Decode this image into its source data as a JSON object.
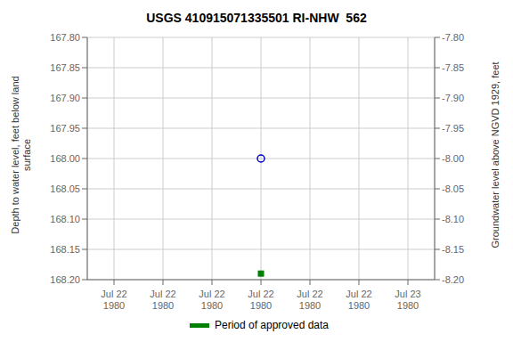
{
  "chart_data": {
    "type": "scatter",
    "title": "USGS 410915071335501 RI-NHW  562",
    "y_label": "Depth to water level, feet below land\nsurface",
    "y2_label": "Groundwater level above NGVD 1929, feet",
    "categories": [
      "Jul 22\n1980",
      "Jul 22\n1980",
      "Jul 22\n1980",
      "Jul 22\n1980",
      "Jul 22\n1980",
      "Jul 22\n1980",
      "Jul 23\n1980"
    ],
    "series": [
      {
        "color": "#0000cc",
        "marker": "circle",
        "values": [
          null,
          null,
          null,
          168.0,
          null,
          null,
          null
        ]
      },
      {
        "name": "Period of approved data",
        "color": "#008000",
        "marker": "square",
        "values": [
          null,
          null,
          null,
          168.19,
          null,
          null,
          null
        ]
      }
    ],
    "ylim": [
      168.2,
      167.8
    ],
    "yticks": [
      {
        "value": 167.8,
        "label": "167.80"
      },
      167.85,
      {
        "value": 167.9,
        "label": "167.90"
      },
      167.95,
      {
        "value": 168.0,
        "label": "168.00"
      },
      168.05,
      {
        "value": 168.1,
        "label": "168.10"
      },
      168.15,
      {
        "value": 168.2,
        "label": "168.20"
      }
    ],
    "y2lim": [
      -8.2,
      -7.8
    ],
    "y2ticks": [
      {
        "value": -7.8,
        "label": "-7.80"
      },
      -7.85,
      {
        "value": -7.9,
        "label": "-7.90"
      },
      -7.95,
      {
        "value": -8.0,
        "label": "-8.00"
      },
      -8.05,
      {
        "value": -8.1,
        "label": "-8.10"
      },
      -8.15,
      {
        "value": -8.2,
        "label": "-8.20"
      }
    ],
    "grid": true,
    "legend": "bottom"
  }
}
